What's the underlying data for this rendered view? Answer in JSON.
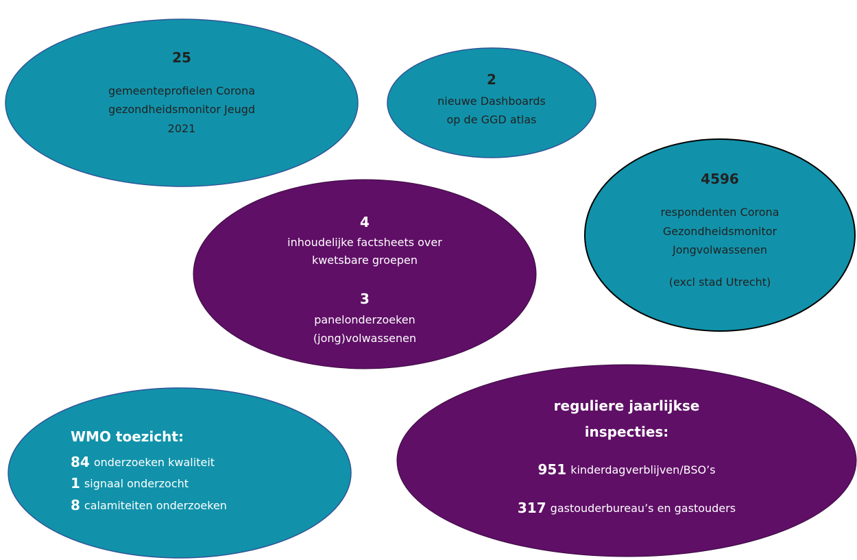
{
  "bubbles": [
    {
      "lines": [
        {
          "bold": "25"
        },
        {
          "text": "gemeenteprofielen Corona"
        },
        {
          "text": "gezondheidsmonitor Jeugd"
        },
        {
          "text": "2021"
        }
      ]
    },
    {
      "lines": [
        {
          "bold": "2"
        },
        {
          "text": "nieuwe Dashboards"
        },
        {
          "text": "op de GGD atlas"
        }
      ]
    },
    {
      "lines": [
        {
          "bold": "4"
        },
        {
          "text": "inhoudelijke factsheets over"
        },
        {
          "text": "kwetsbare groepen"
        },
        {
          "bold": "3"
        },
        {
          "text": "panelonderzoeken"
        },
        {
          "text": "(jong)volwassenen"
        }
      ]
    },
    {
      "lines": [
        {
          "bold": "4596"
        },
        {
          "text": "respondenten Corona"
        },
        {
          "text": "Gezondheidsmonitor"
        },
        {
          "text": "Jongvolwassenen"
        },
        {
          "text": "(excl stad Utrecht)"
        }
      ]
    },
    {
      "lines": [
        {
          "bold": "WMO toezicht:"
        },
        {
          "bold": "84",
          "text": "onderzoeken kwaliteit"
        },
        {
          "bold": "1",
          "text": "signaal onderzocht"
        },
        {
          "bold": "8",
          "text": "calamiteiten onderzoeken"
        }
      ]
    },
    {
      "lines": [
        {
          "bold": "reguliere jaarlijkse"
        },
        {
          "bold": "inspecties:"
        },
        {
          "bold": "951",
          "text": "kinderdagverblijven/BSO’s"
        },
        {
          "bold": "317",
          "text": "gastouderbureau’s en gastouders"
        }
      ]
    }
  ]
}
